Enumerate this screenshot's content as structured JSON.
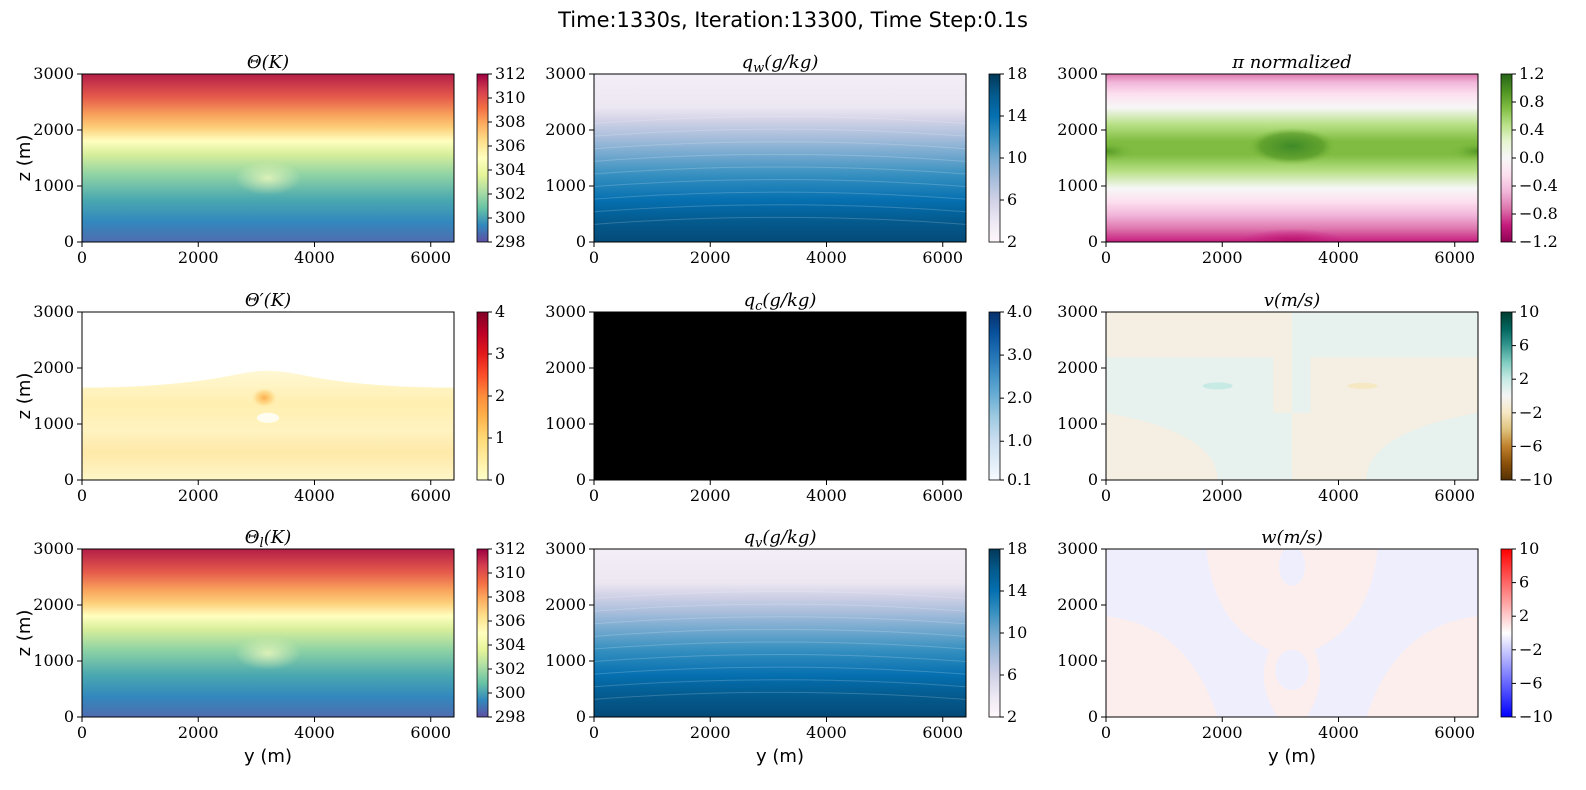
{
  "figure": {
    "title": "Time:1330s, Iteration:13300, Time Step:0.1s"
  },
  "chart_data": [
    {
      "id": "theta",
      "type": "heatmap",
      "title": "Θ(K)",
      "xlabel": "",
      "ylabel": "z (m)",
      "xlim": [
        0,
        6400
      ],
      "ylim": [
        0,
        3000
      ],
      "xticks": [
        0,
        2000,
        4000,
        6000
      ],
      "yticks": [
        0,
        1000,
        2000,
        3000
      ],
      "colorbar": {
        "colormap": "Spectral_r",
        "range": [
          298,
          312
        ],
        "ticks": [
          298,
          300,
          302,
          304,
          306,
          308,
          310,
          312
        ],
        "labels": [
          "298",
          "300",
          "302",
          "304",
          "306",
          "308",
          "310",
          "312"
        ]
      }
    },
    {
      "id": "qw",
      "type": "heatmap",
      "title": "q_w(g/kg)",
      "xlabel": "",
      "ylabel": "",
      "xlim": [
        0,
        6400
      ],
      "ylim": [
        0,
        3000
      ],
      "xticks": [
        0,
        2000,
        4000,
        6000
      ],
      "yticks": [
        0,
        1000,
        2000,
        3000
      ],
      "colorbar": {
        "colormap": "PuBu",
        "range": [
          2,
          18
        ],
        "ticks": [
          2,
          6,
          10,
          14,
          18
        ],
        "labels": [
          "2",
          "6",
          "10",
          "14",
          "18"
        ]
      }
    },
    {
      "id": "pi",
      "type": "heatmap",
      "title": "π normalized",
      "xlabel": "",
      "ylabel": "",
      "xlim": [
        0,
        6400
      ],
      "ylim": [
        0,
        3000
      ],
      "xticks": [
        0,
        2000,
        4000,
        6000
      ],
      "yticks": [
        0,
        1000,
        2000,
        3000
      ],
      "colorbar": {
        "colormap": "PiYG",
        "range": [
          -1.2,
          1.2
        ],
        "ticks": [
          -1.2,
          -0.8,
          -0.4,
          0.0,
          0.4,
          0.8,
          1.2
        ],
        "labels": [
          "−1.2",
          "−0.8",
          "−0.4",
          "0.0",
          "0.4",
          "0.8",
          "1.2"
        ]
      }
    },
    {
      "id": "thetap",
      "type": "heatmap",
      "title": "Θ′(K)",
      "xlabel": "",
      "ylabel": "z (m)",
      "xlim": [
        0,
        6400
      ],
      "ylim": [
        0,
        3000
      ],
      "xticks": [
        0,
        2000,
        4000,
        6000
      ],
      "yticks": [
        0,
        1000,
        2000,
        3000
      ],
      "colorbar": {
        "colormap": "YlOrRd",
        "range": [
          0,
          4
        ],
        "ticks": [
          0,
          1,
          2,
          3,
          4
        ],
        "labels": [
          "0",
          "1",
          "2",
          "3",
          "4"
        ]
      }
    },
    {
      "id": "qc",
      "type": "heatmap",
      "title": "q_c(g/kg)",
      "xlabel": "",
      "ylabel": "",
      "xlim": [
        0,
        6400
      ],
      "ylim": [
        0,
        3000
      ],
      "xticks": [
        0,
        2000,
        4000,
        6000
      ],
      "yticks": [
        0,
        1000,
        2000,
        3000
      ],
      "colorbar": {
        "colormap": "Blues",
        "range": [
          0.1,
          4.0
        ],
        "ticks": [
          0.1,
          1.0,
          2.0,
          3.0,
          4.0
        ],
        "labels": [
          "0.1",
          "1.0",
          "2.0",
          "3.0",
          "4.0"
        ]
      }
    },
    {
      "id": "v",
      "type": "heatmap",
      "title": "v(m/s)",
      "xlabel": "",
      "ylabel": "",
      "xlim": [
        0,
        6400
      ],
      "ylim": [
        0,
        3000
      ],
      "xticks": [
        0,
        2000,
        4000,
        6000
      ],
      "yticks": [
        0,
        1000,
        2000,
        3000
      ],
      "colorbar": {
        "colormap": "BrBG",
        "range": [
          -10,
          10
        ],
        "ticks": [
          -10,
          -6,
          -2,
          2,
          6,
          10
        ],
        "labels": [
          "−10",
          "−6",
          "−2",
          "2",
          "6",
          "10"
        ]
      }
    },
    {
      "id": "thetal",
      "type": "heatmap",
      "title": "Θ_l(K)",
      "xlabel": "y (m)",
      "ylabel": "z (m)",
      "xlim": [
        0,
        6400
      ],
      "ylim": [
        0,
        3000
      ],
      "xticks": [
        0,
        2000,
        4000,
        6000
      ],
      "yticks": [
        0,
        1000,
        2000,
        3000
      ],
      "colorbar": {
        "colormap": "Spectral_r",
        "range": [
          298,
          312
        ],
        "ticks": [
          298,
          300,
          302,
          304,
          306,
          308,
          310,
          312
        ],
        "labels": [
          "298",
          "300",
          "302",
          "304",
          "306",
          "308",
          "310",
          "312"
        ]
      }
    },
    {
      "id": "qv",
      "type": "heatmap",
      "title": "q_v(g/kg)",
      "xlabel": "y (m)",
      "ylabel": "",
      "xlim": [
        0,
        6400
      ],
      "ylim": [
        0,
        3000
      ],
      "xticks": [
        0,
        2000,
        4000,
        6000
      ],
      "yticks": [
        0,
        1000,
        2000,
        3000
      ],
      "colorbar": {
        "colormap": "PuBu",
        "range": [
          2,
          18
        ],
        "ticks": [
          2,
          6,
          10,
          14,
          18
        ],
        "labels": [
          "2",
          "6",
          "10",
          "14",
          "18"
        ]
      }
    },
    {
      "id": "w",
      "type": "heatmap",
      "title": "w(m/s)",
      "xlabel": "y (m)",
      "ylabel": "",
      "xlim": [
        0,
        6400
      ],
      "ylim": [
        0,
        3000
      ],
      "xticks": [
        0,
        2000,
        4000,
        6000
      ],
      "yticks": [
        0,
        1000,
        2000,
        3000
      ],
      "colorbar": {
        "colormap": "bwr",
        "range": [
          -10,
          10
        ],
        "ticks": [
          -10,
          -6,
          -2,
          2,
          6,
          10
        ],
        "labels": [
          "−10",
          "−6",
          "−2",
          "2",
          "6",
          "10"
        ]
      }
    }
  ]
}
